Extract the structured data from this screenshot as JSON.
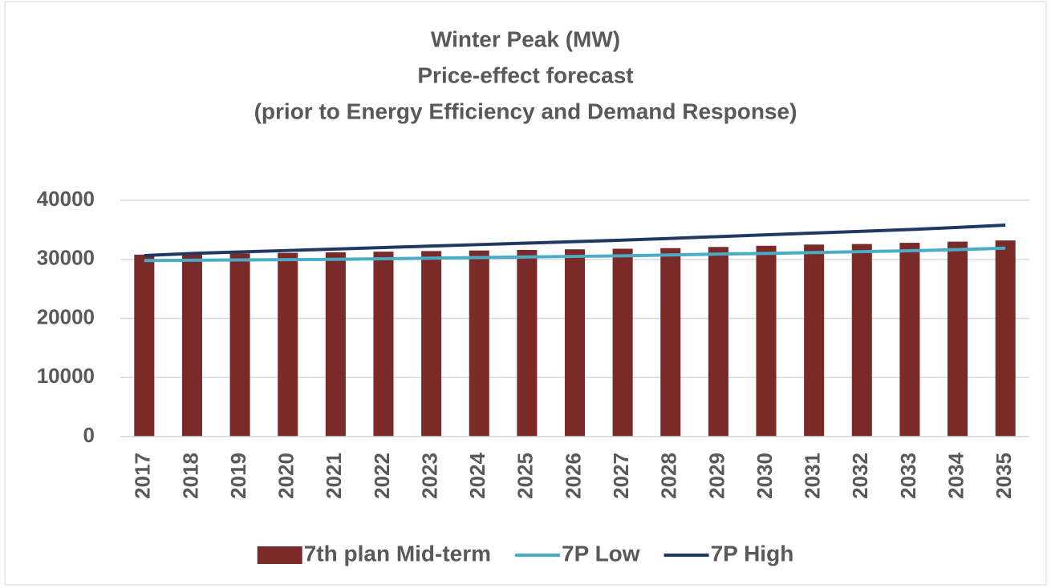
{
  "chart_data": {
    "type": "bar",
    "title": [
      "Winter Peak (MW)",
      "Price-effect forecast",
      "(prior to Energy Efficiency and Demand Response)"
    ],
    "categories": [
      "2017",
      "2018",
      "2019",
      "2020",
      "2021",
      "2022",
      "2023",
      "2024",
      "2025",
      "2026",
      "2027",
      "2028",
      "2029",
      "2030",
      "2031",
      "2032",
      "2033",
      "2034",
      "2035"
    ],
    "series": [
      {
        "name": "7th plan Mid-term",
        "type": "bar",
        "color": "#7b2a2a",
        "values": [
          30800,
          30900,
          31000,
          31100,
          31200,
          31300,
          31400,
          31500,
          31600,
          31700,
          31800,
          31900,
          32100,
          32300,
          32500,
          32600,
          32800,
          33000,
          33200
        ]
      },
      {
        "name": "7P Low",
        "type": "line",
        "color": "#4bacc6",
        "values": [
          29800,
          29850,
          29900,
          29950,
          30000,
          30100,
          30200,
          30300,
          30400,
          30500,
          30600,
          30750,
          30900,
          31000,
          31150,
          31300,
          31450,
          31650,
          31900
        ]
      },
      {
        "name": "7P High",
        "type": "line",
        "color": "#1f3864",
        "values": [
          30650,
          31000,
          31250,
          31500,
          31750,
          32000,
          32250,
          32500,
          32750,
          33000,
          33250,
          33550,
          33850,
          34150,
          34450,
          34750,
          35050,
          35400,
          35800
        ]
      }
    ],
    "ylim": [
      0,
      40000
    ],
    "yticks": [
      0,
      10000,
      20000,
      30000,
      40000
    ],
    "grid": true,
    "legend": "bottom"
  }
}
